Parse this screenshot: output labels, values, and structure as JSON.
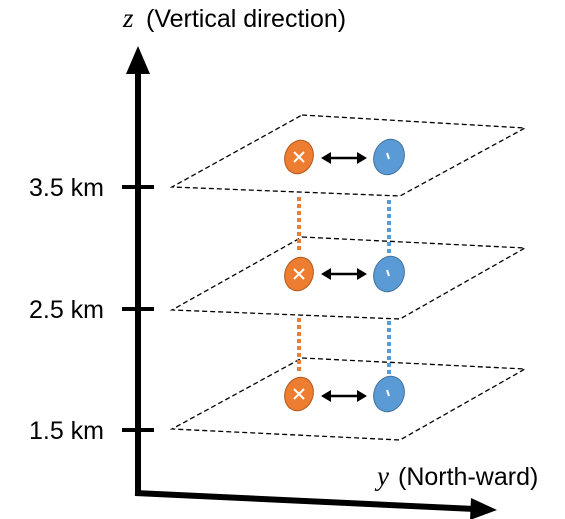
{
  "axes": {
    "z": {
      "variable": "z",
      "label": "(Vertical direction)"
    },
    "y": {
      "variable": "y",
      "label": "(North-ward)"
    }
  },
  "levels": [
    {
      "label": "3.5 km"
    },
    {
      "label": "2.5 km"
    },
    {
      "label": "1.5 km"
    }
  ],
  "markers": {
    "left": {
      "symbol": "×",
      "color": "#ED7D31"
    },
    "right": {
      "symbol": "-",
      "color": "#5B9BD5"
    }
  },
  "colors": {
    "axis": "#000000",
    "plane_border": "#000000",
    "left_connector": "#ED7D31",
    "right_connector": "#5B9BD5"
  }
}
